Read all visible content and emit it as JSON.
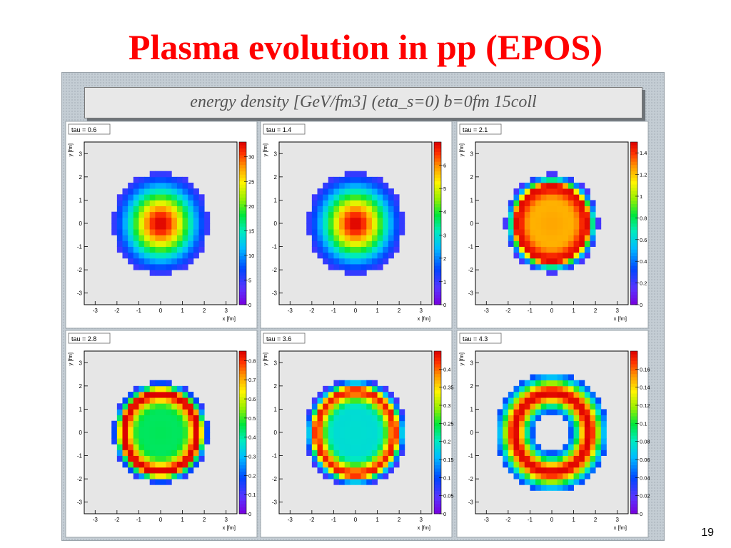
{
  "slide": {
    "title": "Plasma evolution in pp (EPOS)",
    "page_number": "19"
  },
  "figure": {
    "caption": "energy density [GeV/fm3]   (eta_s=0)   b=0fm  15coll"
  },
  "colors": {
    "title": "#ff0000",
    "plot_background": "#e6e6e6",
    "figure_background": "#c4cdd4"
  },
  "chart_data": [
    {
      "type": "heatmap",
      "label": "tau = 0.6",
      "xlabel": "x [fm]",
      "ylabel": "y [fm]",
      "xlim": [
        -3.5,
        3.5
      ],
      "ylim": [
        -3.5,
        3.5
      ],
      "x_ticks": [
        -3,
        -2,
        -1,
        0,
        1,
        2,
        3
      ],
      "y_ticks": [
        -3,
        -2,
        -1,
        0,
        1,
        2,
        3
      ],
      "z_range": [
        0,
        33
      ],
      "z_ticks": [
        0,
        5,
        10,
        15,
        20,
        25,
        30
      ],
      "profile": "peak",
      "outer_radius": 2.2,
      "peak_value": 33
    },
    {
      "type": "heatmap",
      "label": "tau =  1.4",
      "xlabel": "x [fm]",
      "ylabel": "y [fm]",
      "xlim": [
        -3.5,
        3.5
      ],
      "ylim": [
        -3.5,
        3.5
      ],
      "x_ticks": [
        -3,
        -2,
        -1,
        0,
        1,
        2,
        3
      ],
      "y_ticks": [
        -3,
        -2,
        -1,
        0,
        1,
        2,
        3
      ],
      "z_range": [
        0,
        7
      ],
      "z_ticks": [
        0,
        1,
        2,
        3,
        4,
        5,
        6
      ],
      "profile": "peak",
      "outer_radius": 2.2,
      "peak_value": 7
    },
    {
      "type": "heatmap",
      "label": "tau =  2.1",
      "xlabel": "x [fm]",
      "ylabel": "y [fm]",
      "xlim": [
        -3.5,
        3.5
      ],
      "ylim": [
        -3.5,
        3.5
      ],
      "x_ticks": [
        -3,
        -2,
        -1,
        0,
        1,
        2,
        3
      ],
      "y_ticks": [
        -3,
        -2,
        -1,
        0,
        1,
        2,
        3
      ],
      "z_range": [
        0,
        1.5
      ],
      "z_ticks": [
        0,
        0.2,
        0.4,
        0.6,
        0.8,
        1,
        1.2,
        1.4
      ],
      "z_tick_labels": [
        "0",
        "0.2",
        "0.4",
        "0.6",
        "0.8",
        "1",
        "1.2",
        "1.4"
      ],
      "profile": "ring",
      "outer_radius": 2.15,
      "center_value": 1.25,
      "ring_value": 1.45,
      "ring_radius": 1.6
    },
    {
      "type": "heatmap",
      "label": "tau = 2.8",
      "xlabel": "x [fm]",
      "ylabel": "y [fm]",
      "xlim": [
        -3.5,
        3.5
      ],
      "ylim": [
        -3.5,
        3.5
      ],
      "x_ticks": [
        -3,
        -2,
        -1,
        0,
        1,
        2,
        3
      ],
      "y_ticks": [
        -3,
        -2,
        -1,
        0,
        1,
        2,
        3
      ],
      "z_range": [
        0,
        0.85
      ],
      "z_ticks": [
        0,
        0.1,
        0.2,
        0.3,
        0.4,
        0.5,
        0.6,
        0.7,
        0.8
      ],
      "z_tick_labels": [
        "0",
        "0.1",
        "0.2",
        "0.3",
        "0.4",
        "0.5",
        "0.6",
        "0.7",
        "0.8"
      ],
      "profile": "ring",
      "outer_radius": 2.2,
      "center_value": 0.45,
      "ring_value": 0.85,
      "ring_radius": 1.7
    },
    {
      "type": "heatmap",
      "label": "tau =  3.6",
      "xlabel": "x [fm]",
      "ylabel": "y [fm]",
      "xlim": [
        -3.5,
        3.5
      ],
      "ylim": [
        -3.5,
        3.5
      ],
      "x_ticks": [
        -3,
        -2,
        -1,
        0,
        1,
        2,
        3
      ],
      "y_ticks": [
        -3,
        -2,
        -1,
        0,
        1,
        2,
        3
      ],
      "z_range": [
        0,
        0.45
      ],
      "z_ticks": [
        0,
        0.05,
        0.1,
        0.15,
        0.2,
        0.25,
        0.3,
        0.35,
        0.4
      ],
      "z_tick_labels": [
        "0",
        "0.05",
        "0.1",
        "0.15",
        "0.2",
        "0.25",
        "0.3",
        "0.35",
        "0.4"
      ],
      "profile": "ring",
      "outer_radius": 2.35,
      "center_value": 0.19,
      "ring_value": 0.43,
      "ring_radius": 1.8
    },
    {
      "type": "heatmap",
      "label": "tau =  4.3",
      "xlabel": "x [fm]",
      "ylabel": "y [fm]",
      "xlim": [
        -3.5,
        3.5
      ],
      "ylim": [
        -3.5,
        3.5
      ],
      "x_ticks": [
        -3,
        -2,
        -1,
        0,
        1,
        2,
        3
      ],
      "y_ticks": [
        -3,
        -2,
        -1,
        0,
        1,
        2,
        3
      ],
      "z_range": [
        0,
        0.18
      ],
      "z_ticks": [
        0,
        0.02,
        0.04,
        0.06,
        0.08,
        0.1,
        0.12,
        0.14,
        0.16
      ],
      "z_tick_labels": [
        "0",
        "0.02",
        "0.04",
        "0.06",
        "0.08",
        "0.1",
        "0.12",
        "0.14",
        "0.16"
      ],
      "profile": "hollow",
      "outer_radius": 2.6,
      "hole_radius": 0.75,
      "ring_value": 0.17,
      "ring_radius": 1.7
    }
  ]
}
